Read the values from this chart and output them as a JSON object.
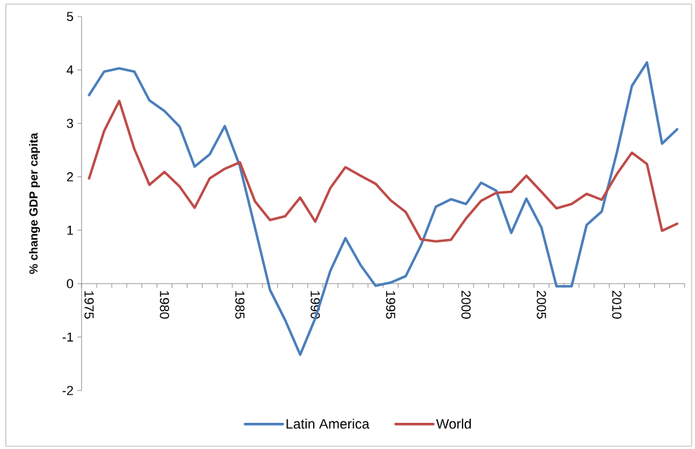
{
  "chart_data": {
    "type": "line",
    "ylabel": "% change GDP per capita",
    "categories": [
      "1975",
      null,
      null,
      null,
      null,
      "1980",
      null,
      null,
      null,
      null,
      "1985",
      null,
      null,
      null,
      null,
      "1990",
      null,
      null,
      null,
      null,
      "1995",
      null,
      null,
      null,
      null,
      "2000",
      null,
      null,
      null,
      null,
      "2005",
      null,
      null,
      null,
      null,
      "2010",
      null,
      null,
      null,
      null
    ],
    "series": [
      {
        "name": "Latin America",
        "color": "#4a7ebb",
        "values": [
          3.53,
          3.97,
          4.03,
          3.97,
          3.43,
          3.23,
          2.94,
          2.19,
          2.42,
          2.95,
          2.2,
          1.05,
          -0.12,
          -0.68,
          -1.33,
          -0.65,
          0.24,
          0.85,
          0.35,
          -0.04,
          0.02,
          0.14,
          0.71,
          1.44,
          1.58,
          1.49,
          1.89,
          1.74,
          0.95,
          1.59,
          1.05,
          -0.05,
          -0.05,
          1.1,
          1.35,
          2.45,
          3.7,
          4.14,
          2.62,
          2.89
        ]
      },
      {
        "name": "World",
        "color": "#be4b48",
        "values": [
          1.97,
          2.86,
          3.42,
          2.52,
          1.85,
          2.09,
          1.82,
          1.42,
          1.97,
          2.15,
          2.27,
          1.54,
          1.19,
          1.26,
          1.61,
          1.16,
          1.79,
          2.18,
          2.02,
          1.87,
          1.56,
          1.34,
          0.83,
          0.79,
          0.82,
          1.22,
          1.55,
          1.7,
          1.72,
          2.02,
          1.72,
          1.41,
          1.49,
          1.68,
          1.57,
          2.05,
          2.45,
          2.24,
          0.99,
          1.12
        ]
      }
    ],
    "ylim": [
      -2,
      5
    ],
    "yticks": [
      -2,
      -1,
      0,
      1,
      2,
      3,
      4,
      5
    ],
    "grid": false,
    "legend": "bottom",
    "marker": "none",
    "line_style": "solid"
  }
}
